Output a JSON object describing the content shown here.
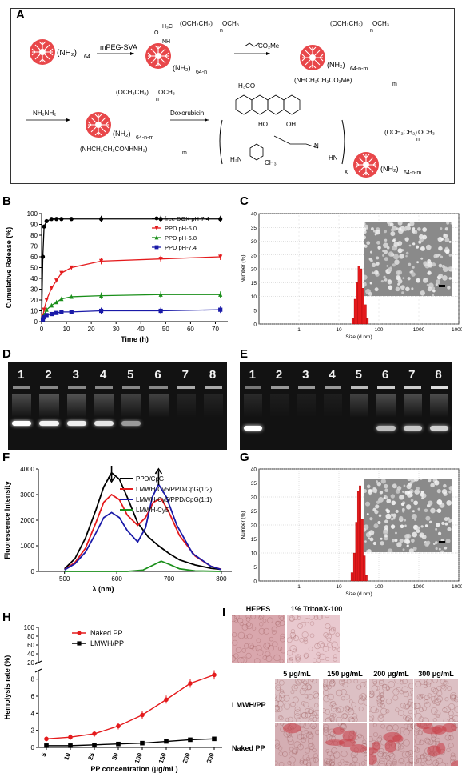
{
  "panels": {
    "A": "A",
    "B": "B",
    "C": "C",
    "D": "D",
    "E": "E",
    "F": "F",
    "G": "G",
    "H": "H",
    "I": "I"
  },
  "scheme": {
    "nh2_64": "(NH₂)",
    "sub64": "64",
    "step1": "mPEG-SVA",
    "step2": "CO₂Me",
    "step3": "NH₂NH₂",
    "step4": "Doxorubicin",
    "peg_chain": "(OCH₂CH₂)",
    "och3": "OCH₃",
    "n": "n",
    "nh": "NH",
    "h3c": "H₃C",
    "nh2_64n": "(NH₂)",
    "sub_64n": "64-n",
    "sub_64nm": "64-n-m",
    "ester_branch": "(NHCH₂CH₂CO₂Me)",
    "hydrazide_branch": "(NHCH₂CH₂CONHNH₂)",
    "m": "m",
    "h3co": "H₃CO",
    "oh": "OH",
    "ho": "HO",
    "h2n": "H₂N",
    "ch3": "CH₃",
    "hn": "HN",
    "n_eq": "N",
    "x": "x",
    "o": "O",
    "c": "C"
  },
  "release_chart": {
    "chart_data": {
      "type": "line",
      "xlabel": "Time (h)",
      "ylabel": "Cumulative Release (%)",
      "xlim": [
        0,
        75
      ],
      "ylim": [
        0,
        100
      ],
      "xticks": [
        0,
        10,
        20,
        30,
        40,
        50,
        60,
        70
      ],
      "yticks": [
        0,
        10,
        20,
        30,
        40,
        50,
        60,
        70,
        80,
        90,
        100
      ],
      "x": [
        0,
        0.5,
        1,
        2,
        4,
        6,
        8,
        12,
        24,
        48,
        72
      ],
      "series": [
        {
          "name": "free DOX pH-7.4",
          "color": "#000000",
          "marker": "circle",
          "values": [
            0,
            60,
            88,
            93,
            95,
            95,
            95,
            95,
            95,
            95,
            95
          ]
        },
        {
          "name": "PPD pH-5.0",
          "color": "#e41a1c",
          "marker": "triangle-down",
          "values": [
            0,
            5,
            11,
            20,
            31,
            38,
            45,
            50,
            56,
            58,
            60
          ]
        },
        {
          "name": "PPD pH-6.8",
          "color": "#1a8f1a",
          "marker": "triangle-up",
          "values": [
            0,
            3,
            6,
            11,
            15,
            18,
            21,
            23,
            24,
            25,
            25
          ]
        },
        {
          "name": "PPD pH-7.4",
          "color": "#1a1aa8",
          "marker": "square",
          "values": [
            0,
            2,
            4,
            6,
            7,
            8,
            9,
            9,
            10,
            10,
            11
          ]
        }
      ],
      "legend": "top-right"
    }
  },
  "size_c": {
    "chart_data": {
      "type": "bar",
      "xlabel": "Size (d.nm)",
      "ylabel": "Number (%)",
      "xscale": "log",
      "xlim": [
        0.1,
        10000
      ],
      "ylim": [
        0,
        40
      ],
      "xticks": [
        1,
        10,
        100,
        1000,
        10000
      ],
      "yticks": [
        0,
        5,
        10,
        15,
        20,
        25,
        30,
        35,
        40
      ],
      "x": [
        21,
        24,
        27,
        30,
        34,
        38,
        43,
        49
      ],
      "values": [
        2,
        9,
        15,
        21,
        20,
        13,
        7,
        2
      ],
      "color": "#e41a1c"
    }
  },
  "gel_d": {
    "lanes": [
      "1",
      "2",
      "3",
      "4",
      "5",
      "6",
      "7",
      "8"
    ]
  },
  "gel_e": {
    "lanes": [
      "1",
      "2",
      "3",
      "4",
      "5",
      "6",
      "7",
      "8"
    ]
  },
  "fluor_chart": {
    "chart_data": {
      "type": "line",
      "xlabel": "λ (nm)",
      "ylabel": "Fluorescence Intensity",
      "xlim": [
        450,
        820
      ],
      "ylim": [
        0,
        4000
      ],
      "xticks": [
        500,
        600,
        700,
        800
      ],
      "yticks": [
        0,
        1000,
        2000,
        3000,
        4000
      ],
      "series": [
        {
          "name": "PPD/CpG",
          "color": "#000000",
          "points": [
            [
              500,
              100
            ],
            [
              520,
              500
            ],
            [
              540,
              1300
            ],
            [
              560,
              2400
            ],
            [
              575,
              3300
            ],
            [
              590,
              3850
            ],
            [
              605,
              3600
            ],
            [
              620,
              2900
            ],
            [
              640,
              1900
            ],
            [
              660,
              1350
            ],
            [
              680,
              1000
            ],
            [
              700,
              700
            ],
            [
              720,
              450
            ],
            [
              750,
              250
            ],
            [
              780,
              120
            ],
            [
              800,
              80
            ]
          ]
        },
        {
          "name": "LMWH-Cy5/PPD/CpG(1:2)",
          "color": "#e41a1c",
          "points": [
            [
              500,
              70
            ],
            [
              520,
              350
            ],
            [
              540,
              900
            ],
            [
              560,
              1900
            ],
            [
              575,
              2700
            ],
            [
              590,
              3000
            ],
            [
              605,
              2800
            ],
            [
              620,
              2200
            ],
            [
              640,
              1800
            ],
            [
              655,
              2100
            ],
            [
              670,
              2700
            ],
            [
              685,
              2850
            ],
            [
              700,
              2300
            ],
            [
              720,
              1400
            ],
            [
              750,
              600
            ],
            [
              780,
              200
            ],
            [
              800,
              80
            ]
          ]
        },
        {
          "name": "LMWH-Cy5/PPD/CpG(1:1)",
          "color": "#1a1aa8",
          "points": [
            [
              500,
              60
            ],
            [
              520,
              300
            ],
            [
              540,
              750
            ],
            [
              560,
              1500
            ],
            [
              575,
              2100
            ],
            [
              590,
              2300
            ],
            [
              605,
              2100
            ],
            [
              620,
              1600
            ],
            [
              640,
              1150
            ],
            [
              655,
              1700
            ],
            [
              668,
              2900
            ],
            [
              680,
              3400
            ],
            [
              695,
              2900
            ],
            [
              715,
              1800
            ],
            [
              745,
              700
            ],
            [
              780,
              200
            ],
            [
              800,
              70
            ]
          ]
        },
        {
          "name": "LMWH-Cy5",
          "color": "#1a8f1a",
          "points": [
            [
              500,
              0
            ],
            [
              620,
              0
            ],
            [
              650,
              50
            ],
            [
              670,
              250
            ],
            [
              685,
              400
            ],
            [
              700,
              280
            ],
            [
              720,
              100
            ],
            [
              750,
              20
            ],
            [
              800,
              0
            ]
          ]
        }
      ],
      "legend": "top-right",
      "annotations": [
        {
          "type": "arrow-down",
          "x": 590
        },
        {
          "type": "arrow-up",
          "x": 680
        }
      ]
    }
  },
  "size_g": {
    "chart_data": {
      "type": "bar",
      "xlabel": "Size (d.nm)",
      "ylabel": "Number (%)",
      "xscale": "log",
      "xlim": [
        0.1,
        10000
      ],
      "ylim": [
        0,
        40
      ],
      "xticks": [
        1,
        10,
        100,
        1000,
        10000
      ],
      "yticks": [
        0,
        5,
        10,
        15,
        20,
        25,
        30,
        35,
        40
      ],
      "x": [
        20,
        23,
        26,
        29,
        32,
        36,
        41,
        46
      ],
      "values": [
        3,
        10,
        21,
        32,
        34,
        22,
        9,
        2
      ],
      "color": "#e41a1c"
    }
  },
  "hemolysis_chart": {
    "chart_data": {
      "type": "line",
      "xlabel": "PP concentration (μg/mL)",
      "ylabel": "Hemolysis rate (%)",
      "categories": [
        "5",
        "10",
        "25",
        "50",
        "100",
        "150",
        "200",
        "300"
      ],
      "yticks_lower": [
        0,
        2,
        4,
        6,
        8
      ],
      "yticks_upper": [
        20,
        40,
        60,
        80,
        100
      ],
      "ylim": [
        0,
        100
      ],
      "axis_break": [
        10,
        20
      ],
      "series": [
        {
          "name": "Naked PP",
          "color": "#e41a1c",
          "marker": "circle",
          "values": [
            1.0,
            1.2,
            1.6,
            2.5,
            3.8,
            5.6,
            7.5,
            8.5
          ]
        },
        {
          "name": "LMWH/PP",
          "color": "#000000",
          "marker": "square",
          "values": [
            0.2,
            0.2,
            0.3,
            0.4,
            0.5,
            0.7,
            0.9,
            1.0
          ]
        }
      ],
      "legend": "top-left"
    }
  },
  "hemo_images": {
    "top_labels": [
      "HEPES",
      "1% TritonX-100"
    ],
    "conc_labels": [
      "5 μg/mL",
      "150 μg/mL",
      "200 μg/mL",
      "300 μg/mL"
    ],
    "row_labels": [
      "LMWH/PP",
      "Naked PP"
    ]
  }
}
